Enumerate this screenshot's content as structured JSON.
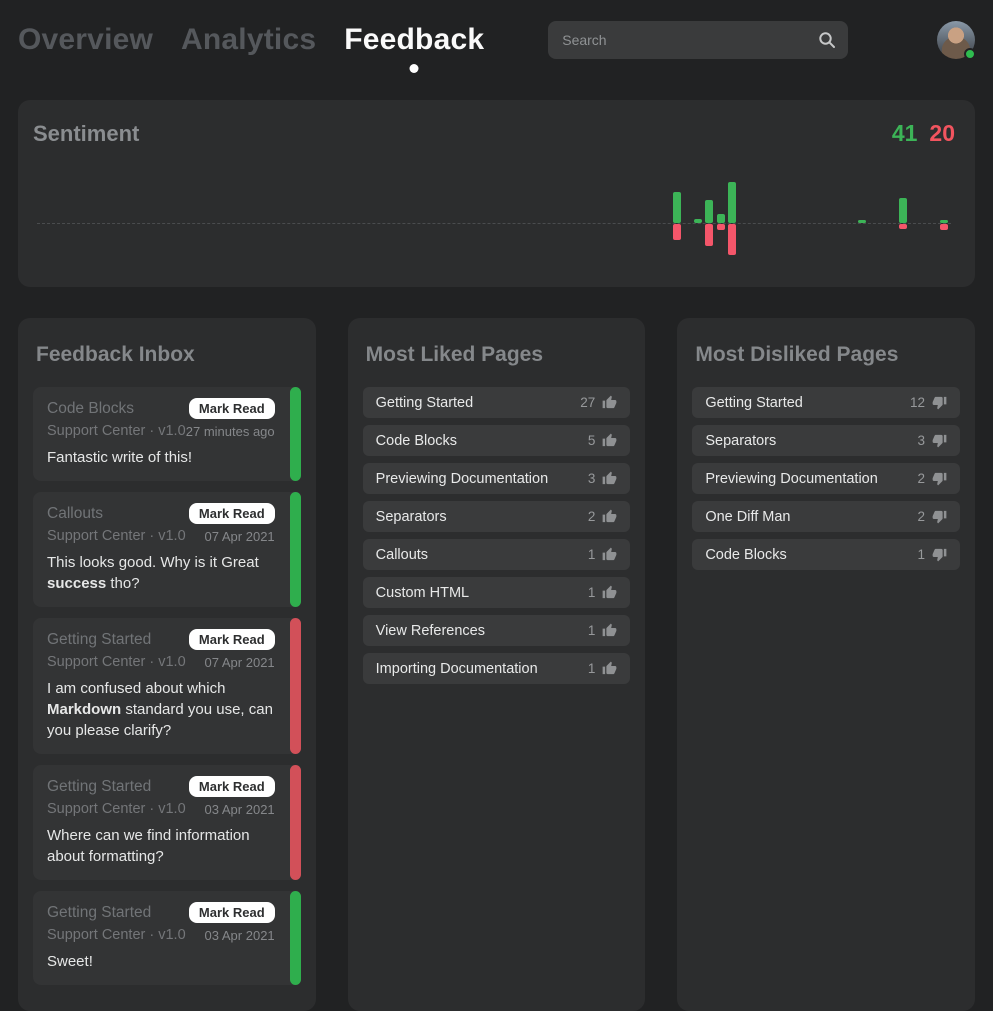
{
  "nav": {
    "tabs": [
      {
        "label": "Overview",
        "active": false
      },
      {
        "label": "Analytics",
        "active": false
      },
      {
        "label": "Feedback",
        "active": true
      }
    ],
    "search_placeholder": "Search"
  },
  "sentiment": {
    "title": "Sentiment",
    "likes_total": "41",
    "dislikes_total": "20",
    "positive_color": "#3cb457",
    "negative_color": "#f4566a"
  },
  "chart_data": {
    "type": "bar",
    "title": "Sentiment",
    "note": "diverging sparkline bars; green above dashed baseline = likes, red below = dislikes; values are relative heights in px",
    "x_percent": [
      70.3,
      72.6,
      73.8,
      75.0,
      76.2,
      90.4,
      94.8,
      99.2
    ],
    "series": [
      {
        "name": "positive",
        "color": "#3cb457",
        "values": [
          31,
          4,
          23,
          9,
          41,
          3,
          25,
          3
        ]
      },
      {
        "name": "negative",
        "color": "#f4566a",
        "values": [
          16,
          0,
          22,
          6,
          31,
          0,
          5,
          6
        ]
      }
    ],
    "legend": [
      "41",
      "20"
    ],
    "grid": false
  },
  "inbox": {
    "title": "Feedback Inbox",
    "mark_read_label": "Mark Read",
    "cards": [
      {
        "page": "Code Blocks",
        "source": "Support Center · v1.0",
        "time": "27 minutes ago",
        "sentiment": "positive",
        "body": [
          {
            "t": "Fantastic write of this!",
            "b": false
          }
        ]
      },
      {
        "page": "Callouts",
        "source": "Support Center · v1.0",
        "time": "07 Apr 2021",
        "sentiment": "positive",
        "body": [
          {
            "t": "This looks good. Why is it Great ",
            "b": false
          },
          {
            "t": "success",
            "b": true
          },
          {
            "t": " tho?",
            "b": false
          }
        ]
      },
      {
        "page": "Getting Started",
        "source": "Support Center · v1.0",
        "time": "07 Apr 2021",
        "sentiment": "negative",
        "body": [
          {
            "t": "I am confused about which ",
            "b": false
          },
          {
            "t": "Markdown",
            "b": true
          },
          {
            "t": " standard you use, can you please clarify?",
            "b": false
          }
        ]
      },
      {
        "page": "Getting Started",
        "source": "Support Center · v1.0",
        "time": "03 Apr 2021",
        "sentiment": "negative",
        "body": [
          {
            "t": "Where can we find information about formatting?",
            "b": false
          }
        ]
      },
      {
        "page": "Getting Started",
        "source": "Support Center · v1.0",
        "time": "03 Apr 2021",
        "sentiment": "positive",
        "body": [
          {
            "t": "Sweet!",
            "b": false
          }
        ]
      }
    ]
  },
  "liked": {
    "title": "Most Liked Pages",
    "rows": [
      {
        "label": "Getting Started",
        "count": "27"
      },
      {
        "label": "Code Blocks",
        "count": "5"
      },
      {
        "label": "Previewing Documentation",
        "count": "3"
      },
      {
        "label": "Separators",
        "count": "2"
      },
      {
        "label": "Callouts",
        "count": "1"
      },
      {
        "label": "Custom HTML",
        "count": "1"
      },
      {
        "label": "View References",
        "count": "1"
      },
      {
        "label": "Importing Documentation",
        "count": "1"
      }
    ]
  },
  "disliked": {
    "title": "Most Disliked Pages",
    "rows": [
      {
        "label": "Getting Started",
        "count": "12"
      },
      {
        "label": "Separators",
        "count": "3"
      },
      {
        "label": "Previewing Documentation",
        "count": "2"
      },
      {
        "label": "One Diff Man",
        "count": "2"
      },
      {
        "label": "Code Blocks",
        "count": "1"
      }
    ]
  }
}
